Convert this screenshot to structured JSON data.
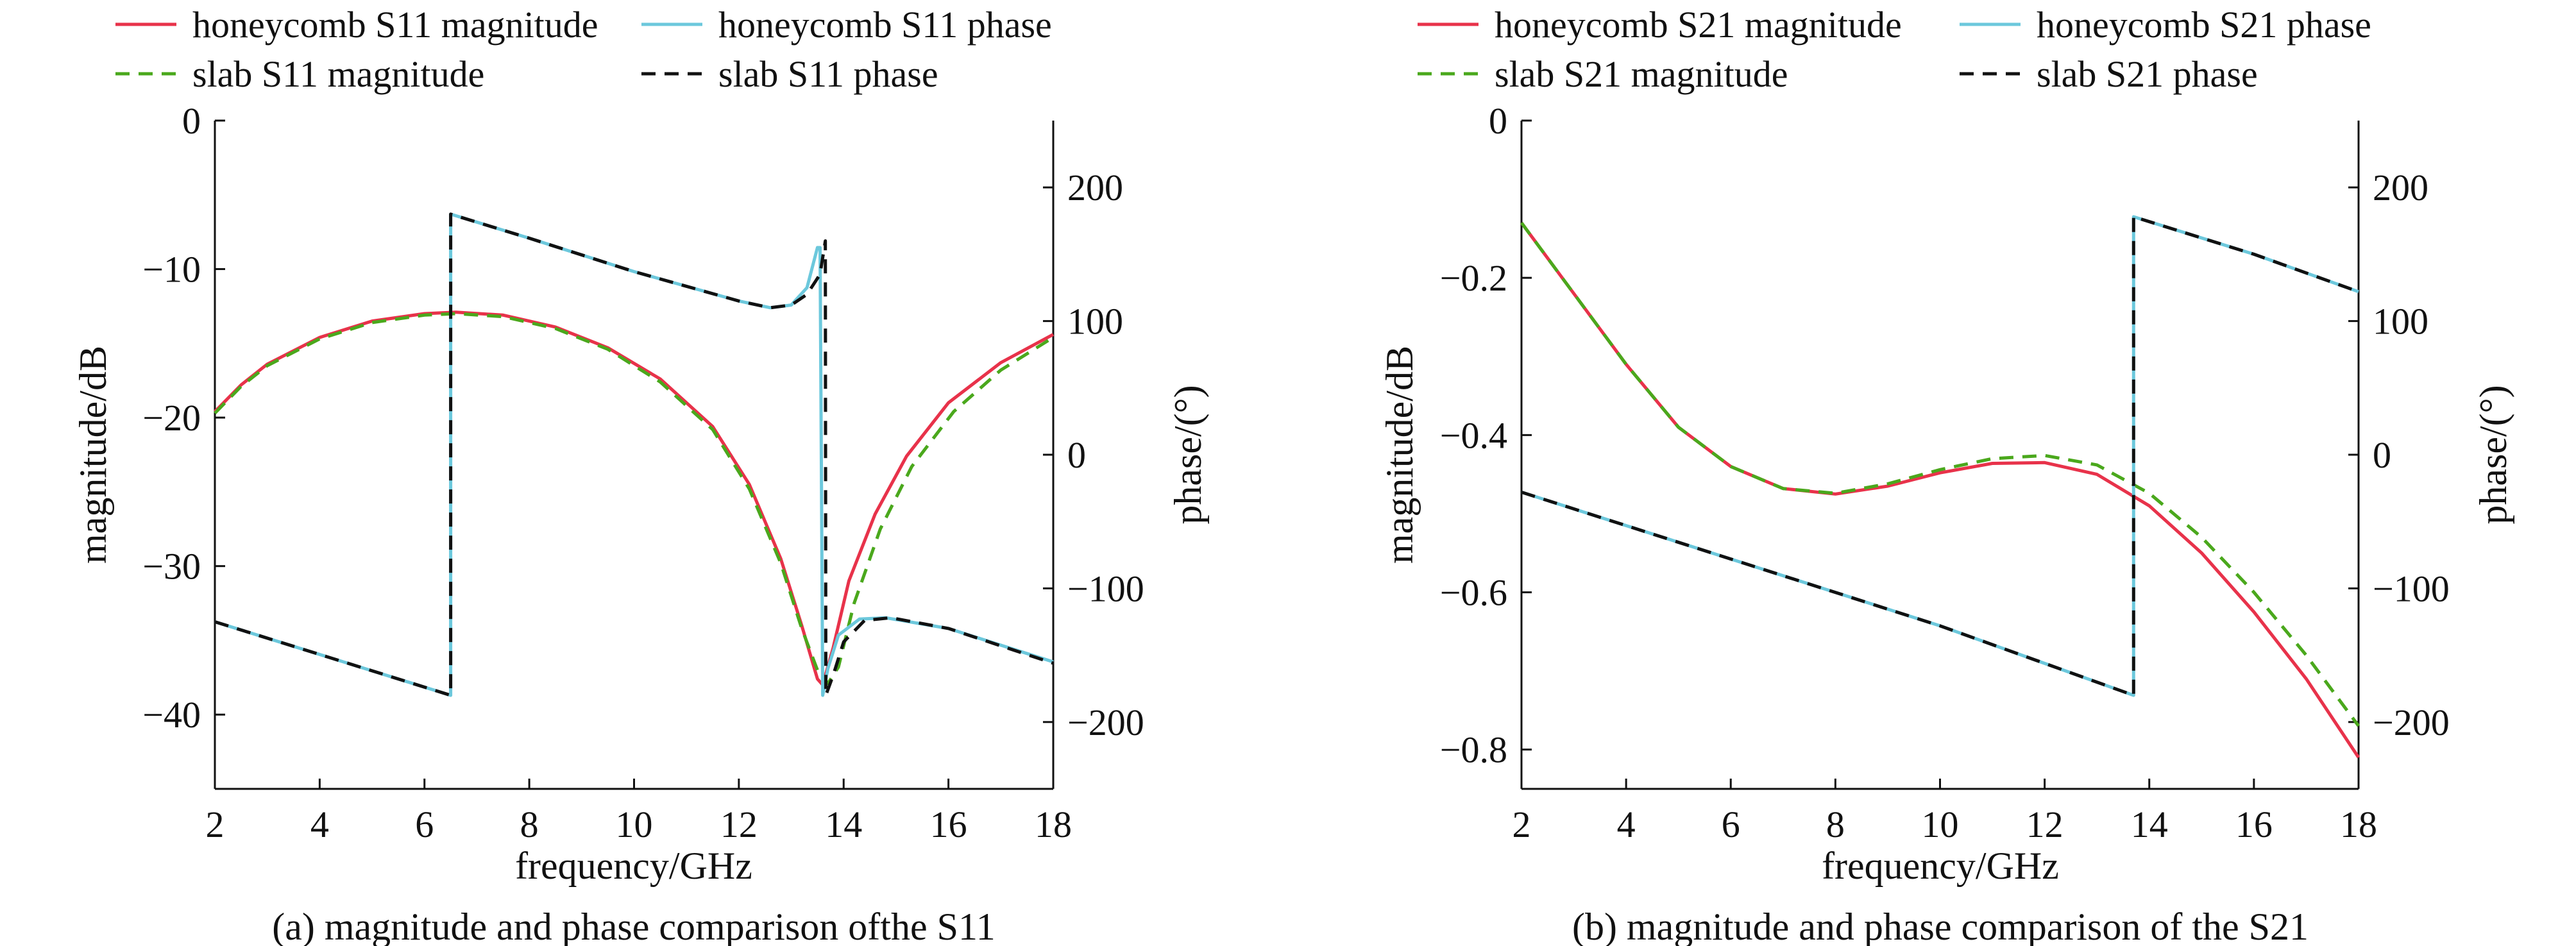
{
  "colors": {
    "honeycomb_magnitude": "#e8324a",
    "honeycomb_phase": "#6cc8dc",
    "slab_magnitude": "#4aa81c",
    "slab_phase": "#111111",
    "axis": "#111111"
  },
  "chart_data": [
    {
      "type": "line",
      "caption": "(a) magnitude and phase comparison ofthe S11",
      "xlabel": "frequency/GHz",
      "ylabel": "magnitude/dB",
      "y2label": "phase/(°)",
      "xlim": [
        2,
        18
      ],
      "ylim": [
        -45,
        0
      ],
      "y2lim": [
        -250,
        250
      ],
      "xticks": [
        2,
        4,
        6,
        8,
        10,
        12,
        14,
        16,
        18
      ],
      "yticks": [
        0,
        -10,
        -20,
        -30,
        -40
      ],
      "y2ticks": [
        200,
        100,
        0,
        -100,
        -200
      ],
      "grid": false,
      "legend": "top",
      "series": [
        {
          "name": "honeycomb S11 magnitude",
          "axis": "left",
          "style": "solid",
          "color_key": "honeycomb_magnitude",
          "points": [
            [
              2,
              -19.6
            ],
            [
              2.5,
              -17.8
            ],
            [
              3,
              -16.4
            ],
            [
              4,
              -14.6
            ],
            [
              5,
              -13.5
            ],
            [
              6,
              -13.0
            ],
            [
              6.6,
              -12.9
            ],
            [
              7.5,
              -13.1
            ],
            [
              8.5,
              -13.9
            ],
            [
              9.5,
              -15.3
            ],
            [
              10.5,
              -17.4
            ],
            [
              11.5,
              -20.6
            ],
            [
              12.2,
              -24.5
            ],
            [
              12.8,
              -29.5
            ],
            [
              13.2,
              -34.0
            ],
            [
              13.5,
              -37.6
            ],
            [
              13.6,
              -38.0
            ],
            [
              13.8,
              -35.5
            ],
            [
              14.1,
              -31.0
            ],
            [
              14.6,
              -26.5
            ],
            [
              15.2,
              -22.6
            ],
            [
              16,
              -19.0
            ],
            [
              17,
              -16.3
            ],
            [
              18,
              -14.4
            ]
          ]
        },
        {
          "name": "slab S11 magnitude",
          "axis": "left",
          "style": "dashed",
          "color_key": "slab_magnitude",
          "points": [
            [
              2,
              -19.7
            ],
            [
              2.5,
              -17.9
            ],
            [
              3,
              -16.5
            ],
            [
              4,
              -14.7
            ],
            [
              5,
              -13.6
            ],
            [
              6,
              -13.1
            ],
            [
              6.6,
              -13.0
            ],
            [
              7.5,
              -13.2
            ],
            [
              8.5,
              -14.0
            ],
            [
              9.5,
              -15.4
            ],
            [
              10.5,
              -17.6
            ],
            [
              11.5,
              -20.8
            ],
            [
              12.2,
              -24.8
            ],
            [
              12.8,
              -29.8
            ],
            [
              13.2,
              -34.2
            ],
            [
              13.5,
              -37.0
            ],
            [
              13.7,
              -37.9
            ],
            [
              13.9,
              -36.8
            ],
            [
              14.2,
              -32.5
            ],
            [
              14.7,
              -27.5
            ],
            [
              15.3,
              -23.3
            ],
            [
              16.1,
              -19.6
            ],
            [
              17,
              -16.8
            ],
            [
              18,
              -14.6
            ]
          ]
        },
        {
          "name": "honeycomb S11 phase",
          "axis": "right",
          "style": "solid",
          "color_key": "honeycomb_phase",
          "points": [
            [
              2,
              -125
            ],
            [
              6.5,
              -180
            ],
            [
              6.5,
              180
            ],
            [
              8,
              162
            ],
            [
              10,
              137
            ],
            [
              12,
              115
            ],
            [
              12.6,
              110
            ],
            [
              13,
              112
            ],
            [
              13.3,
              125
            ],
            [
              13.5,
              155
            ],
            [
              13.55,
              155
            ],
            [
              13.6,
              -180
            ],
            [
              13.7,
              -160
            ],
            [
              13.9,
              -135
            ],
            [
              14.3,
              -123
            ],
            [
              14.8,
              -122
            ],
            [
              16,
              -130
            ],
            [
              18,
              -155
            ]
          ]
        },
        {
          "name": "slab S11 phase",
          "axis": "right",
          "style": "dashed",
          "color_key": "slab_phase",
          "points": [
            [
              2,
              -125
            ],
            [
              6.5,
              -180
            ],
            [
              6.5,
              180
            ],
            [
              8,
              162
            ],
            [
              10,
              137
            ],
            [
              12,
              115
            ],
            [
              12.6,
              110
            ],
            [
              13,
              112
            ],
            [
              13.3,
              120
            ],
            [
              13.55,
              135
            ],
            [
              13.65,
              160
            ],
            [
              13.66,
              -180
            ],
            [
              13.8,
              -165
            ],
            [
              14.0,
              -140
            ],
            [
              14.4,
              -124
            ],
            [
              14.9,
              -122
            ],
            [
              16,
              -130
            ],
            [
              18,
              -156
            ]
          ]
        }
      ]
    },
    {
      "type": "line",
      "caption": "(b) magnitude and phase comparison of the S21",
      "xlabel": "frequency/GHz",
      "ylabel": "magnitude/dB",
      "y2label": "phase/(°)",
      "xlim": [
        2,
        18
      ],
      "ylim": [
        -0.85,
        0
      ],
      "y2lim": [
        -250,
        250
      ],
      "xticks": [
        2,
        4,
        6,
        8,
        10,
        12,
        14,
        16,
        18
      ],
      "yticks": [
        0,
        -0.2,
        -0.4,
        -0.6,
        -0.8
      ],
      "y2ticks": [
        200,
        100,
        0,
        -100,
        -200
      ],
      "grid": false,
      "legend": "top",
      "series": [
        {
          "name": "honeycomb S21 magnitude",
          "axis": "left",
          "style": "solid",
          "color_key": "honeycomb_magnitude",
          "points": [
            [
              2,
              -0.13
            ],
            [
              3,
              -0.22
            ],
            [
              4,
              -0.31
            ],
            [
              5,
              -0.39
            ],
            [
              6,
              -0.44
            ],
            [
              7,
              -0.468
            ],
            [
              8,
              -0.475
            ],
            [
              9,
              -0.465
            ],
            [
              10,
              -0.448
            ],
            [
              11,
              -0.436
            ],
            [
              12,
              -0.435
            ],
            [
              13,
              -0.45
            ],
            [
              14,
              -0.49
            ],
            [
              15,
              -0.55
            ],
            [
              16,
              -0.625
            ],
            [
              17,
              -0.71
            ],
            [
              18,
              -0.81
            ]
          ]
        },
        {
          "name": "slab S21 magnitude",
          "axis": "left",
          "style": "dashed",
          "color_key": "slab_magnitude",
          "points": [
            [
              2,
              -0.13
            ],
            [
              3,
              -0.22
            ],
            [
              4,
              -0.31
            ],
            [
              5,
              -0.39
            ],
            [
              6,
              -0.44
            ],
            [
              7,
              -0.468
            ],
            [
              8,
              -0.474
            ],
            [
              9,
              -0.462
            ],
            [
              10,
              -0.444
            ],
            [
              11,
              -0.43
            ],
            [
              12,
              -0.426
            ],
            [
              13,
              -0.438
            ],
            [
              14,
              -0.474
            ],
            [
              15,
              -0.53
            ],
            [
              16,
              -0.6
            ],
            [
              17,
              -0.68
            ],
            [
              18,
              -0.77
            ]
          ]
        },
        {
          "name": "honeycomb S21 phase",
          "axis": "right",
          "style": "solid",
          "color_key": "honeycomb_phase",
          "points": [
            [
              2,
              -28
            ],
            [
              6,
              -78
            ],
            [
              10,
              -128
            ],
            [
              13.7,
              -180
            ],
            [
              13.7,
              178
            ],
            [
              16,
              150
            ],
            [
              18,
              122
            ]
          ]
        },
        {
          "name": "slab S21 phase",
          "axis": "right",
          "style": "dashed",
          "color_key": "slab_phase",
          "points": [
            [
              2,
              -28
            ],
            [
              6,
              -78
            ],
            [
              10,
              -128
            ],
            [
              13.7,
              -180
            ],
            [
              13.7,
              178
            ],
            [
              16,
              150
            ],
            [
              18,
              122
            ]
          ]
        }
      ]
    }
  ]
}
